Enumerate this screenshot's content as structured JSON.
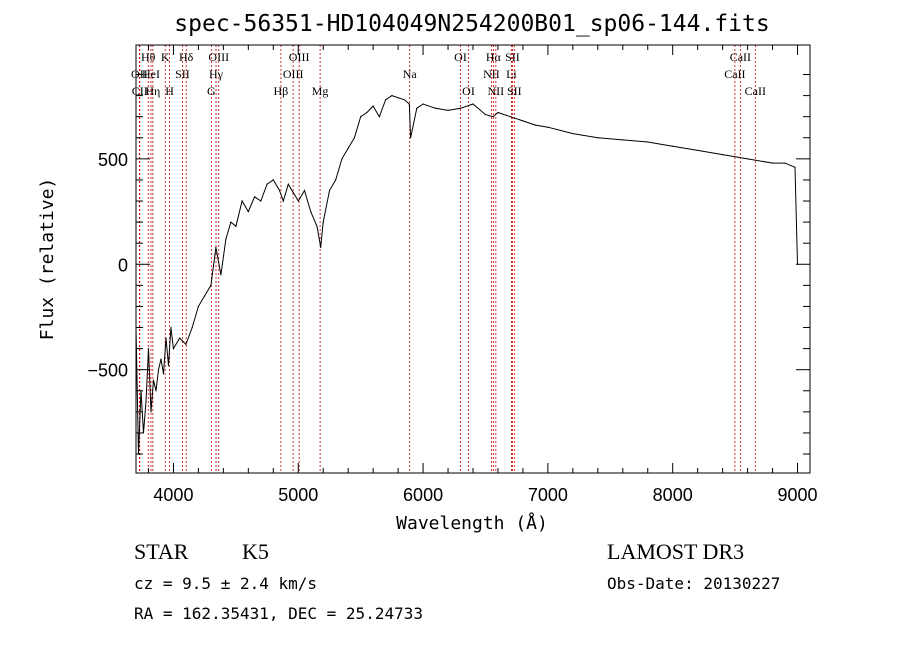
{
  "chart_data": {
    "type": "line",
    "title": "spec-56351-HD104049N254200B01_sp06-144.fits",
    "xlabel": "Wavelength (Å)",
    "ylabel": "Flux (relative)",
    "xlim": [
      3700,
      9100
    ],
    "ylim": [
      -990,
      1040
    ],
    "xticks": [
      4000,
      5000,
      6000,
      7000,
      8000,
      9000
    ],
    "yticks": [
      -500,
      0,
      500
    ],
    "series": [
      {
        "name": "spectrum",
        "x": [
          3700,
          3720,
          3740,
          3760,
          3780,
          3800,
          3820,
          3840,
          3860,
          3880,
          3900,
          3920,
          3940,
          3960,
          3980,
          4000,
          4050,
          4100,
          4150,
          4200,
          4250,
          4300,
          4340,
          4380,
          4420,
          4460,
          4500,
          4550,
          4600,
          4650,
          4700,
          4750,
          4800,
          4850,
          4880,
          4920,
          4960,
          5000,
          5050,
          5100,
          5150,
          5180,
          5200,
          5250,
          5300,
          5350,
          5400,
          5450,
          5500,
          5550,
          5600,
          5650,
          5700,
          5750,
          5800,
          5850,
          5890,
          5900,
          5950,
          6000,
          6100,
          6200,
          6300,
          6400,
          6500,
          6560,
          6600,
          6700,
          6800,
          6900,
          7000,
          7200,
          7400,
          7600,
          7800,
          8000,
          8200,
          8400,
          8600,
          8800,
          8900,
          8980,
          9000
        ],
        "values": [
          -300,
          -900,
          -600,
          -800,
          -650,
          -400,
          -700,
          -550,
          -600,
          -500,
          -450,
          -520,
          -350,
          -480,
          -300,
          -400,
          -350,
          -380,
          -300,
          -200,
          -150,
          -100,
          80,
          -50,
          120,
          200,
          180,
          300,
          250,
          320,
          300,
          380,
          400,
          350,
          300,
          380,
          340,
          300,
          350,
          250,
          180,
          80,
          200,
          350,
          400,
          500,
          550,
          600,
          700,
          720,
          750,
          700,
          780,
          800,
          790,
          780,
          760,
          600,
          740,
          760,
          740,
          730,
          740,
          760,
          710,
          700,
          720,
          700,
          680,
          660,
          650,
          620,
          600,
          590,
          580,
          560,
          540,
          520,
          500,
          480,
          480,
          460,
          0
        ]
      }
    ],
    "spectral_lines": [
      {
        "label": "Hθ",
        "wavelength": 3798,
        "row": 1
      },
      {
        "label": "OII",
        "wavelength": 3727,
        "row": 2
      },
      {
        "label": "CII",
        "wavelength": 3730,
        "row": 3
      },
      {
        "label": "HeI",
        "wavelength": 3820,
        "row": 2
      },
      {
        "label": "Hη",
        "wavelength": 3835,
        "row": 3
      },
      {
        "label": "K",
        "wavelength": 3934,
        "row": 1
      },
      {
        "label": "SII",
        "wavelength": 4072,
        "row": 2
      },
      {
        "label": "H",
        "wavelength": 3969,
        "row": 3
      },
      {
        "label": "Hδ",
        "wavelength": 4102,
        "row": 1
      },
      {
        "label": "OIII",
        "wavelength": 4363,
        "row": 1
      },
      {
        "label": "Hγ",
        "wavelength": 4341,
        "row": 2
      },
      {
        "label": "G",
        "wavelength": 4304,
        "row": 3
      },
      {
        "label": "Hβ",
        "wavelength": 4861,
        "row": 3
      },
      {
        "label": "OIII",
        "wavelength": 5007,
        "row": 1
      },
      {
        "label": "OIII",
        "wavelength": 4959,
        "row": 2
      },
      {
        "label": "Mg",
        "wavelength": 5175,
        "row": 3
      },
      {
        "label": "Na",
        "wavelength": 5893,
        "row": 2
      },
      {
        "label": "OI",
        "wavelength": 6300,
        "row": 1
      },
      {
        "label": "OI",
        "wavelength": 6364,
        "row": 3
      },
      {
        "label": "Hα",
        "wavelength": 6563,
        "row": 1
      },
      {
        "label": "NII",
        "wavelength": 6548,
        "row": 2
      },
      {
        "label": "NII",
        "wavelength": 6583,
        "row": 3
      },
      {
        "label": "SII",
        "wavelength": 6716,
        "row": 1
      },
      {
        "label": "Li",
        "wavelength": 6708,
        "row": 2
      },
      {
        "label": "SII",
        "wavelength": 6731,
        "row": 3
      },
      {
        "label": "CaII",
        "wavelength": 8542,
        "row": 1
      },
      {
        "label": "CaII",
        "wavelength": 8498,
        "row": 2
      },
      {
        "label": "CaII",
        "wavelength": 8662,
        "row": 3
      }
    ]
  },
  "info": {
    "class": "STAR",
    "subclass": "K5",
    "survey": "LAMOST DR3",
    "cz": "cz = 9.5 ± 2.4 km/s",
    "obs_date": "Obs-Date: 20130227",
    "coords": "RA = 162.35431, DEC =  25.24733"
  },
  "colors": {
    "line": "#000000",
    "marker": "#cc0000",
    "axes": "#000000",
    "background": "#ffffff"
  }
}
